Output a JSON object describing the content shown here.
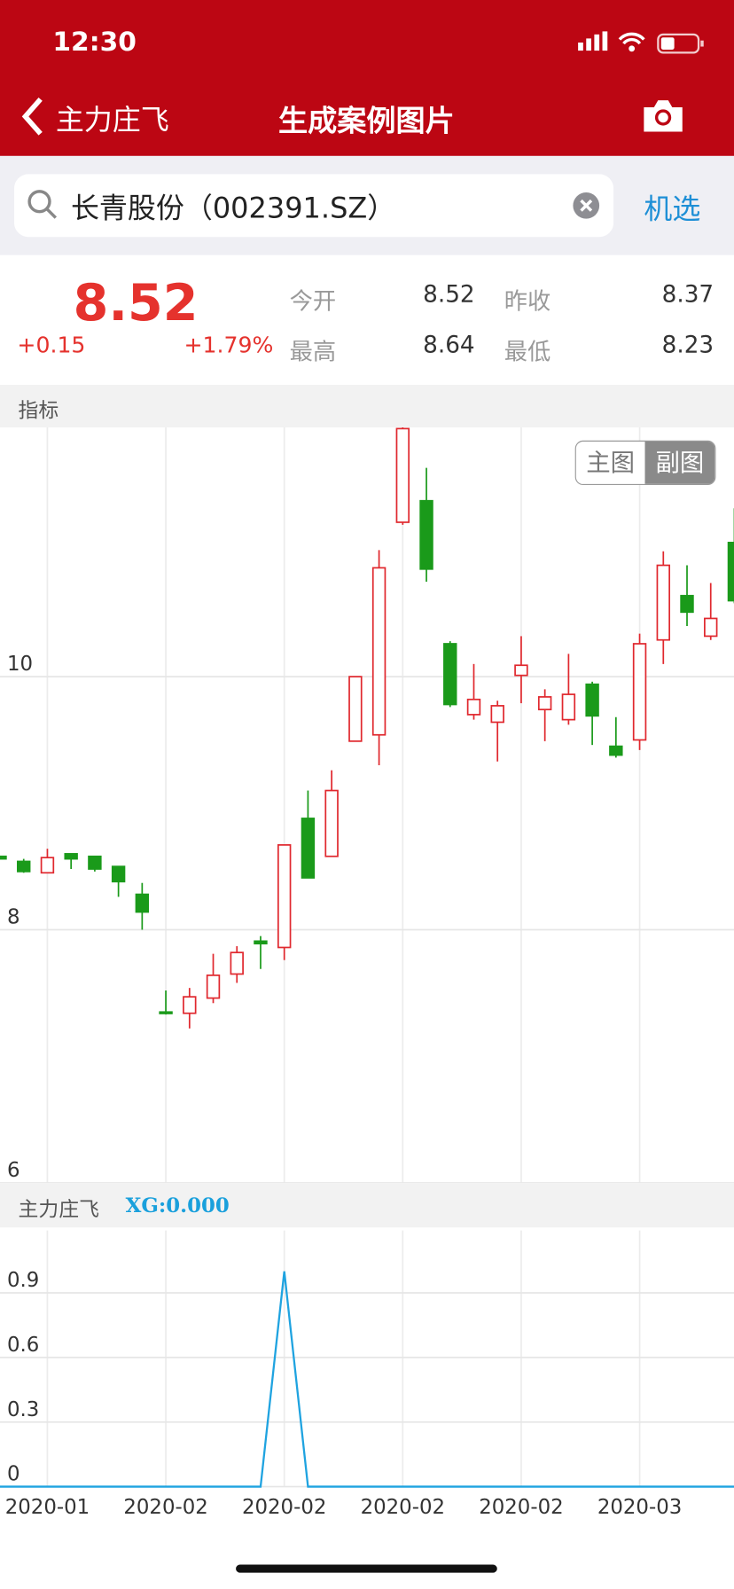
{
  "status_bar": {
    "time": "12:30"
  },
  "nav": {
    "back": "主力庄飞",
    "title": "生成案例图片"
  },
  "search": {
    "query": "长青股份（002391.SZ）",
    "button": "机选"
  },
  "quote": {
    "price": "8.52",
    "change": "+0.15",
    "change_pct": "+1.79%",
    "fields": [
      {
        "label": "今开",
        "value": "8.52"
      },
      {
        "label": "昨收",
        "value": "8.37"
      },
      {
        "label": "最高",
        "value": "8.64"
      },
      {
        "label": "最低",
        "value": "8.23"
      }
    ]
  },
  "section_label": "指标",
  "toggle": [
    "主图",
    "副图"
  ],
  "chart_data": [
    {
      "type": "candlestick",
      "open": [
        8.58,
        8.54,
        8.45,
        8.6,
        8.58,
        8.5,
        8.28,
        7.35,
        7.34,
        7.46,
        7.65,
        7.91,
        7.86,
        8.88,
        8.58,
        9.49,
        9.54,
        11.22,
        11.39,
        10.26,
        9.7,
        9.64,
        10.01,
        9.74,
        9.66,
        9.94,
        9.45,
        9.5,
        10.29,
        10.64,
        10.32,
        11.06
      ],
      "high": [
        8.58,
        8.56,
        8.64,
        8.6,
        8.58,
        8.5,
        8.37,
        7.52,
        7.54,
        7.81,
        7.87,
        7.95,
        8.67,
        9.1,
        9.26,
        10.0,
        11.0,
        11.97,
        11.65,
        10.28,
        10.1,
        9.81,
        10.32,
        9.9,
        10.18,
        9.96,
        9.68,
        10.34,
        10.99,
        10.88,
        10.74,
        11.33
      ],
      "low": [
        8.56,
        8.45,
        8.45,
        8.48,
        8.46,
        8.26,
        8.0,
        7.33,
        7.22,
        7.42,
        7.58,
        7.69,
        7.76,
        8.41,
        8.58,
        9.49,
        9.3,
        11.2,
        10.75,
        9.76,
        9.66,
        9.33,
        9.79,
        9.49,
        9.62,
        9.46,
        9.36,
        9.42,
        10.1,
        10.4,
        10.29,
        10.58
      ],
      "close": [
        8.56,
        8.46,
        8.57,
        8.56,
        8.48,
        8.38,
        8.14,
        7.34,
        7.47,
        7.64,
        7.82,
        7.89,
        8.67,
        8.41,
        9.1,
        10.0,
        10.86,
        11.96,
        10.85,
        9.78,
        9.82,
        9.77,
        10.09,
        9.84,
        9.86,
        9.69,
        9.38,
        10.26,
        10.88,
        10.51,
        10.46,
        10.6
      ],
      "up_color": "#e0282e",
      "down_color": "#1a9a1a",
      "ylim": [
        6,
        11.97
      ],
      "yticks": [
        6,
        8,
        10
      ],
      "grid": true
    },
    {
      "type": "line",
      "title": "主力庄飞",
      "annotation": "XG:0.000",
      "categories": [
        null,
        null,
        "2020-01",
        null,
        null,
        null,
        null,
        "2020-02",
        null,
        null,
        null,
        null,
        "2020-02",
        null,
        null,
        null,
        null,
        "2020-02",
        null,
        null,
        null,
        null,
        "2020-02",
        null,
        null,
        null,
        null,
        "2020-03",
        null,
        null,
        null,
        null
      ],
      "series": [
        {
          "color": "#1fa3e0",
          "values": [
            0,
            0,
            0,
            0,
            0,
            0,
            0,
            0,
            0,
            0,
            0,
            0,
            1,
            0,
            0,
            0,
            0,
            0,
            0,
            0,
            0,
            0,
            0,
            0,
            0,
            0,
            0,
            0,
            0,
            0,
            0,
            0
          ]
        }
      ],
      "ylim": [
        0,
        1.19
      ],
      "yticks": [
        0,
        0.3,
        0.6,
        0.9
      ],
      "grid": true
    }
  ]
}
